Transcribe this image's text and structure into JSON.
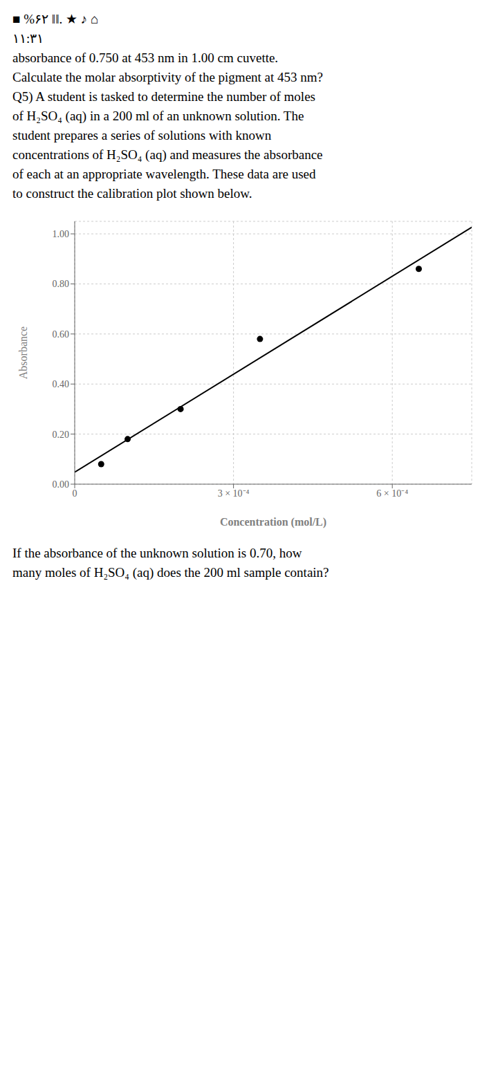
{
  "chart_data": {
    "type": "scatter",
    "xlabel": "Concentration (mol/L)",
    "ylabel": "Absorbance",
    "series": [
      {
        "type": "scatter",
        "color": "#000000",
        "x": [
          5e-05,
          0.0001,
          0.0002,
          0.00035,
          0.00065
        ],
        "values": [
          0.08,
          0.18,
          0.3,
          0.58,
          0.86
        ]
      },
      {
        "type": "line",
        "color": "#000000",
        "x": [
          0,
          0.00075
        ],
        "values": [
          0.0477253219,
          1.0262660944
        ]
      }
    ],
    "xlim": [
      0,
      0.00075
    ],
    "ylim": [
      0.0,
      1.05
    ],
    "xticks": [
      0,
      {
        "value": 0.0003,
        "label": "3 × 10⁻⁴"
      },
      {
        "value": 0.0006,
        "label": "6 × 10⁻⁴"
      }
    ],
    "yticks": [
      {
        "value": 0.0,
        "label": "0.00"
      },
      {
        "value": 0.2,
        "label": "0.20"
      },
      {
        "value": 0.4,
        "label": "0.40"
      },
      {
        "value": 0.6,
        "label": "0.60"
      },
      {
        "value": 0.8,
        "label": "0.80"
      },
      {
        "value": 1.0,
        "label": "1.00"
      }
    ],
    "grid": true,
    "annotations": {
      "above": [
        "■ %۶۲  ‖‖.  ★  ♪  ⌂",
        "۱۱:۳۱",
        "absorbance of 0.750 at 453 nm in 1.00 cm cuvette.",
        "Calculate the molar absorptivity of the pigment at 453 nm?",
        "Q5) A student is tasked to determine the number of moles",
        "of H₂SO₄ (aq) in a 200 ml of an unknown solution. The",
        "student prepares a series of solutions with known",
        "concentrations of H₂SO₄ (aq) and measures the absorbance",
        "of each at an appropriate wavelength. These data are used",
        "to construct the calibration plot shown below."
      ],
      "below": [
        "If the absorbance of the unknown solution is 0.70, how",
        "many moles of H₂SO₄ (aq) does the 200 ml sample contain?"
      ]
    }
  }
}
